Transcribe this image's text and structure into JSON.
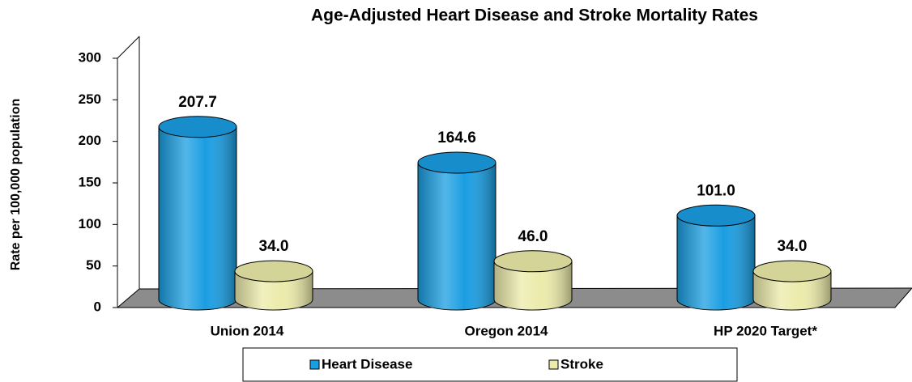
{
  "chart_data": {
    "type": "bar3d",
    "title": "Age-Adjusted Heart Disease and Stroke Mortality Rates",
    "ylabel": "Rate per 100,000 population",
    "categories": [
      "Union 2014",
      "Oregon 2014",
      "HP 2020 Target*"
    ],
    "series": [
      {
        "name": "Heart Disease",
        "color": "#1a9ee2",
        "values": [
          207.7,
          164.6,
          101.0
        ],
        "value_labels": [
          "207.7",
          "164.6",
          "101.0"
        ]
      },
      {
        "name": "Stroke",
        "color": "#ecebaa",
        "values": [
          34.0,
          46.0,
          34.0
        ],
        "value_labels": [
          "34.0",
          "46.0",
          "34.0"
        ]
      }
    ],
    "ylim": [
      0,
      300
    ],
    "yticks": [
      0,
      50,
      100,
      150,
      200,
      250,
      300
    ],
    "grid": false,
    "legend": "bottom"
  }
}
